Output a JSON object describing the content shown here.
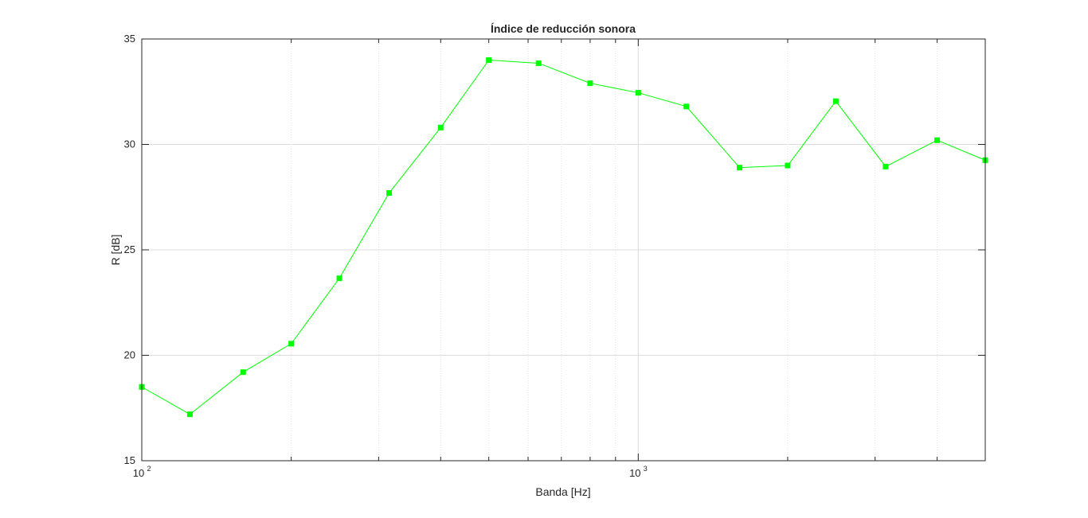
{
  "chart_data": {
    "type": "line",
    "title": "Índice de reducción sonora",
    "xlabel": "Banda [Hz]",
    "ylabel": "R [dB]",
    "xscale": "log",
    "xlim": [
      100,
      5000
    ],
    "ylim": [
      15,
      35
    ],
    "yticks": [
      15,
      20,
      25,
      30,
      35
    ],
    "xticks": [
      {
        "base": "10",
        "exp": "2",
        "value": 100
      },
      {
        "base": "10",
        "exp": "3",
        "value": 1000
      }
    ],
    "grid": true,
    "series": [
      {
        "color": "#00ff00",
        "marker": "square",
        "x": [
          100,
          125,
          160,
          200,
          250,
          315,
          400,
          500,
          630,
          800,
          1000,
          1250,
          1600,
          2000,
          2500,
          3150,
          4000,
          5000
        ],
        "y": [
          18.5,
          17.2,
          19.2,
          20.55,
          23.65,
          27.7,
          30.8,
          34.0,
          33.85,
          32.9,
          32.45,
          31.8,
          28.9,
          29.0,
          32.05,
          28.95,
          30.2,
          29.25
        ]
      }
    ]
  }
}
